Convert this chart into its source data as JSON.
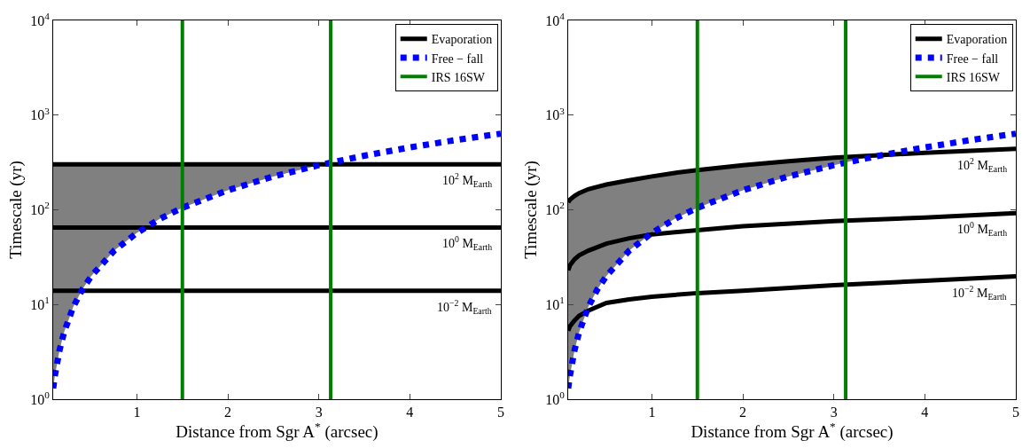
{
  "chart_data": [
    {
      "type": "line",
      "xlabel": "Distance from Sgr A$^{*}$ (arcsec)",
      "ylabel": "Timescale (yr)",
      "log": "y",
      "legend": "top right",
      "marker": "none",
      "xlim": [
        0.08,
        5
      ],
      "xticks": [
        1,
        2,
        3,
        4,
        5
      ],
      "ylim": [
        1,
        10000
      ],
      "yticks": [
        {
          "value": 1,
          "label": "10$^{0}$"
        },
        {
          "value": 10,
          "label": "10$^{1}$"
        },
        {
          "value": 100,
          "label": "10$^{2}$"
        },
        {
          "value": 1000,
          "label": "10$^{3}$"
        },
        {
          "value": 10000,
          "label": "10$^{4}$"
        }
      ],
      "series": [
        {
          "name": "Evaporation",
          "color": "#000000",
          "line_style": "solid",
          "x": [
            0.08,
            0.1,
            0.15,
            0.2,
            0.3,
            0.4,
            0.5,
            0.75,
            1,
            1.25,
            1.5,
            2,
            2.5,
            3,
            3.13,
            3.5,
            4,
            4.5,
            5
          ],
          "values": [
            302,
            302,
            302,
            302,
            302,
            302,
            302,
            302,
            302,
            302,
            302,
            302,
            302,
            302,
            302,
            302,
            302,
            302,
            302
          ],
          "lower": [
            1.3,
            1.8,
            3.3,
            5.1,
            9.4,
            14.4,
            20,
            37,
            57,
            80,
            105,
            161,
            225,
            296,
            302,
            null,
            null,
            null,
            null
          ],
          "upper": [
            302,
            302,
            302,
            302,
            302,
            302,
            302,
            302,
            302,
            302,
            302,
            302,
            302,
            302,
            302,
            null,
            null,
            null,
            null
          ]
        },
        {
          "color": "#000000",
          "line_style": "solid",
          "x": [
            0.08,
            5
          ],
          "values": [
            65,
            65
          ]
        },
        {
          "color": "#000000",
          "line_style": "solid",
          "x": [
            0.08,
            5
          ],
          "values": [
            14,
            14
          ]
        },
        {
          "name": "Free − fall",
          "color": "#0000ff",
          "line_style": "dotted",
          "x": [
            0.08,
            0.1,
            0.15,
            0.2,
            0.3,
            0.4,
            0.5,
            0.75,
            1,
            1.25,
            1.5,
            2,
            2.5,
            3,
            3.5,
            4,
            4.5,
            5
          ],
          "values": [
            1.3,
            1.8,
            3.3,
            5.1,
            9.4,
            14.4,
            20,
            37,
            57,
            80,
            105,
            161,
            225,
            296,
            373,
            456,
            544,
            637
          ]
        },
        {
          "name": "IRS 16SW",
          "color": "#008000",
          "line_style": "solid",
          "x": [
            1.5,
            1.5
          ],
          "values": [
            1,
            10000
          ]
        },
        {
          "color": "#008000",
          "line_style": "solid",
          "x": [
            3.13,
            3.13
          ],
          "values": [
            1,
            10000
          ]
        }
      ],
      "annotations": [
        "10$^{2}$ M$_{Earth}$",
        "10$^{0}$ M$_{Earth}$",
        "10$^{−2}$ M$_{Earth}$"
      ]
    },
    {
      "type": "line",
      "xlabel": "Distance from Sgr A$^{*}$ (arcsec)",
      "ylabel": "Timescale (yr)",
      "log": "y",
      "legend": "top right",
      "marker": "none",
      "xlim": [
        0.08,
        5
      ],
      "xticks": [
        1,
        2,
        3,
        4,
        5
      ],
      "ylim": [
        1,
        10000
      ],
      "yticks": [
        {
          "value": 1,
          "label": "10$^{0}$"
        },
        {
          "value": 10,
          "label": "10$^{1}$"
        },
        {
          "value": 100,
          "label": "10$^{2}$"
        },
        {
          "value": 1000,
          "label": "10$^{3}$"
        },
        {
          "value": 10000,
          "label": "10$^{4}$"
        }
      ],
      "series": [
        {
          "name": "Evaporation",
          "color": "#000000",
          "line_style": "solid",
          "x": [
            0.08,
            0.1,
            0.15,
            0.2,
            0.3,
            0.4,
            0.5,
            0.75,
            1,
            1.25,
            1.5,
            2,
            2.5,
            3,
            3.45,
            4,
            4.5,
            5
          ],
          "values": [
            120,
            128,
            140,
            150,
            165,
            175,
            185,
            205,
            225,
            245,
            262,
            295,
            325,
            355,
            375,
            400,
            420,
            440
          ],
          "lower": [
            1.3,
            1.8,
            3.3,
            5.1,
            9.4,
            14.4,
            20,
            37,
            57,
            80,
            105,
            161,
            225,
            296,
            375,
            null,
            null,
            null
          ],
          "upper": [
            120,
            128,
            140,
            150,
            165,
            175,
            185,
            205,
            225,
            245,
            262,
            295,
            325,
            355,
            375,
            null,
            null,
            null
          ]
        },
        {
          "color": "#000000",
          "line_style": "solid",
          "x": [
            0.08,
            0.1,
            0.15,
            0.2,
            0.3,
            0.5,
            0.75,
            1,
            1.5,
            2,
            3,
            4,
            5
          ],
          "values": [
            23,
            26,
            30,
            33,
            37,
            44,
            50,
            55,
            61,
            67,
            76,
            83,
            92
          ]
        },
        {
          "color": "#000000",
          "line_style": "solid",
          "x": [
            0.08,
            0.1,
            0.15,
            0.2,
            0.3,
            0.5,
            0.75,
            1,
            1.5,
            2,
            3,
            4,
            5
          ],
          "values": [
            5.3,
            5.9,
            6.8,
            7.6,
            8.6,
            10.4,
            11.3,
            12.1,
            13.2,
            14,
            16,
            17.8,
            19.8
          ]
        },
        {
          "name": "Free − fall",
          "color": "#0000ff",
          "line_style": "dotted",
          "x": [
            0.08,
            0.1,
            0.15,
            0.2,
            0.3,
            0.4,
            0.5,
            0.75,
            1,
            1.25,
            1.5,
            2,
            2.5,
            3,
            3.5,
            4,
            4.5,
            5
          ],
          "values": [
            1.3,
            1.8,
            3.3,
            5.1,
            9.4,
            14.4,
            20,
            37,
            57,
            80,
            105,
            161,
            225,
            296,
            373,
            456,
            544,
            637
          ]
        },
        {
          "name": "IRS 16SW",
          "color": "#008000",
          "line_style": "solid",
          "x": [
            1.5,
            1.5
          ],
          "values": [
            1,
            10000
          ]
        },
        {
          "color": "#008000",
          "line_style": "solid",
          "x": [
            3.13,
            3.13
          ],
          "values": [
            1,
            10000
          ]
        }
      ],
      "annotations": [
        "10$^{2}$ M$_{Earth}$",
        "10$^{0}$ M$_{Earth}$",
        "10$^{−2}$ M$_{Earth}$"
      ]
    }
  ]
}
